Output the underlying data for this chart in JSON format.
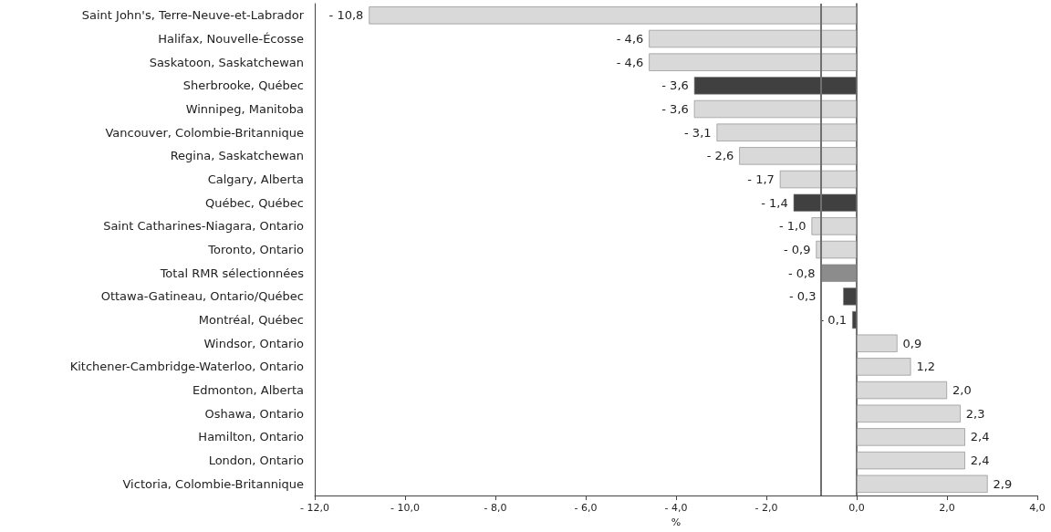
{
  "chart_data": {
    "type": "bar",
    "orientation": "horizontal",
    "xlabel": "%",
    "categories": [
      "Saint John's, Terre-Neuve-et-Labrador",
      "Halifax, Nouvelle-Écosse",
      "Saskatoon, Saskatchewan",
      "Sherbrooke, Québec",
      "Winnipeg, Manitoba",
      "Vancouver, Colombie-Britannique",
      "Regina, Saskatchewan",
      "Calgary, Alberta",
      "Québec, Québec",
      "Saint Catharines-Niagara, Ontario",
      "Toronto, Ontario",
      "Total RMR sélectionnées",
      "Ottawa-Gatineau, Ontario/Québec",
      "Montréal, Québec",
      "Windsor, Ontario",
      "Kitchener-Cambridge-Waterloo, Ontario",
      "Edmonton, Alberta",
      "Oshawa, Ontario",
      "Hamilton, Ontario",
      "London, Ontario",
      "Victoria, Colombie-Britannique"
    ],
    "values": [
      -10.8,
      -4.6,
      -4.6,
      -3.6,
      -3.6,
      -3.1,
      -2.6,
      -1.7,
      -1.4,
      -1.0,
      -0.9,
      -0.8,
      -0.3,
      -0.1,
      0.9,
      1.2,
      2.0,
      2.3,
      2.4,
      2.4,
      2.9
    ],
    "value_labels": [
      "- 10,8",
      "- 4,6",
      "- 4,6",
      "- 3,6",
      "- 3,6",
      "- 3,1",
      "- 2,6",
      "- 1,7",
      "- 1,4",
      "- 1,0",
      "- 0,9",
      "- 0,8",
      "- 0,3",
      "- 0,1",
      "0,9",
      "1,2",
      "2,0",
      "2,3",
      "2,4",
      "2,4",
      "2,9"
    ],
    "colors": [
      "#d9d9d9",
      "#d9d9d9",
      "#d9d9d9",
      "#404040",
      "#d9d9d9",
      "#d9d9d9",
      "#d9d9d9",
      "#d9d9d9",
      "#404040",
      "#d9d9d9",
      "#d9d9d9",
      "#8c8c8c",
      "#404040",
      "#404040",
      "#d9d9d9",
      "#d9d9d9",
      "#d9d9d9",
      "#d9d9d9",
      "#d9d9d9",
      "#d9d9d9",
      "#d9d9d9"
    ],
    "xlim": [
      -12,
      4
    ],
    "xticks": [
      {
        "value": -12,
        "label": "- 12,0"
      },
      {
        "value": -10,
        "label": "- 10,0"
      },
      {
        "value": -8,
        "label": "- 8,0"
      },
      {
        "value": -6,
        "label": "- 6,0"
      },
      {
        "value": -4,
        "label": "- 4,0"
      },
      {
        "value": -2,
        "label": "- 2,0"
      },
      {
        "value": 0,
        "label": "0,0"
      },
      {
        "value": 2,
        "label": "2,0"
      },
      {
        "value": 4,
        "label": "4,0"
      }
    ],
    "ref_lines": [
      {
        "axis": "x",
        "value": -0.8,
        "color": "#707070"
      }
    ]
  }
}
